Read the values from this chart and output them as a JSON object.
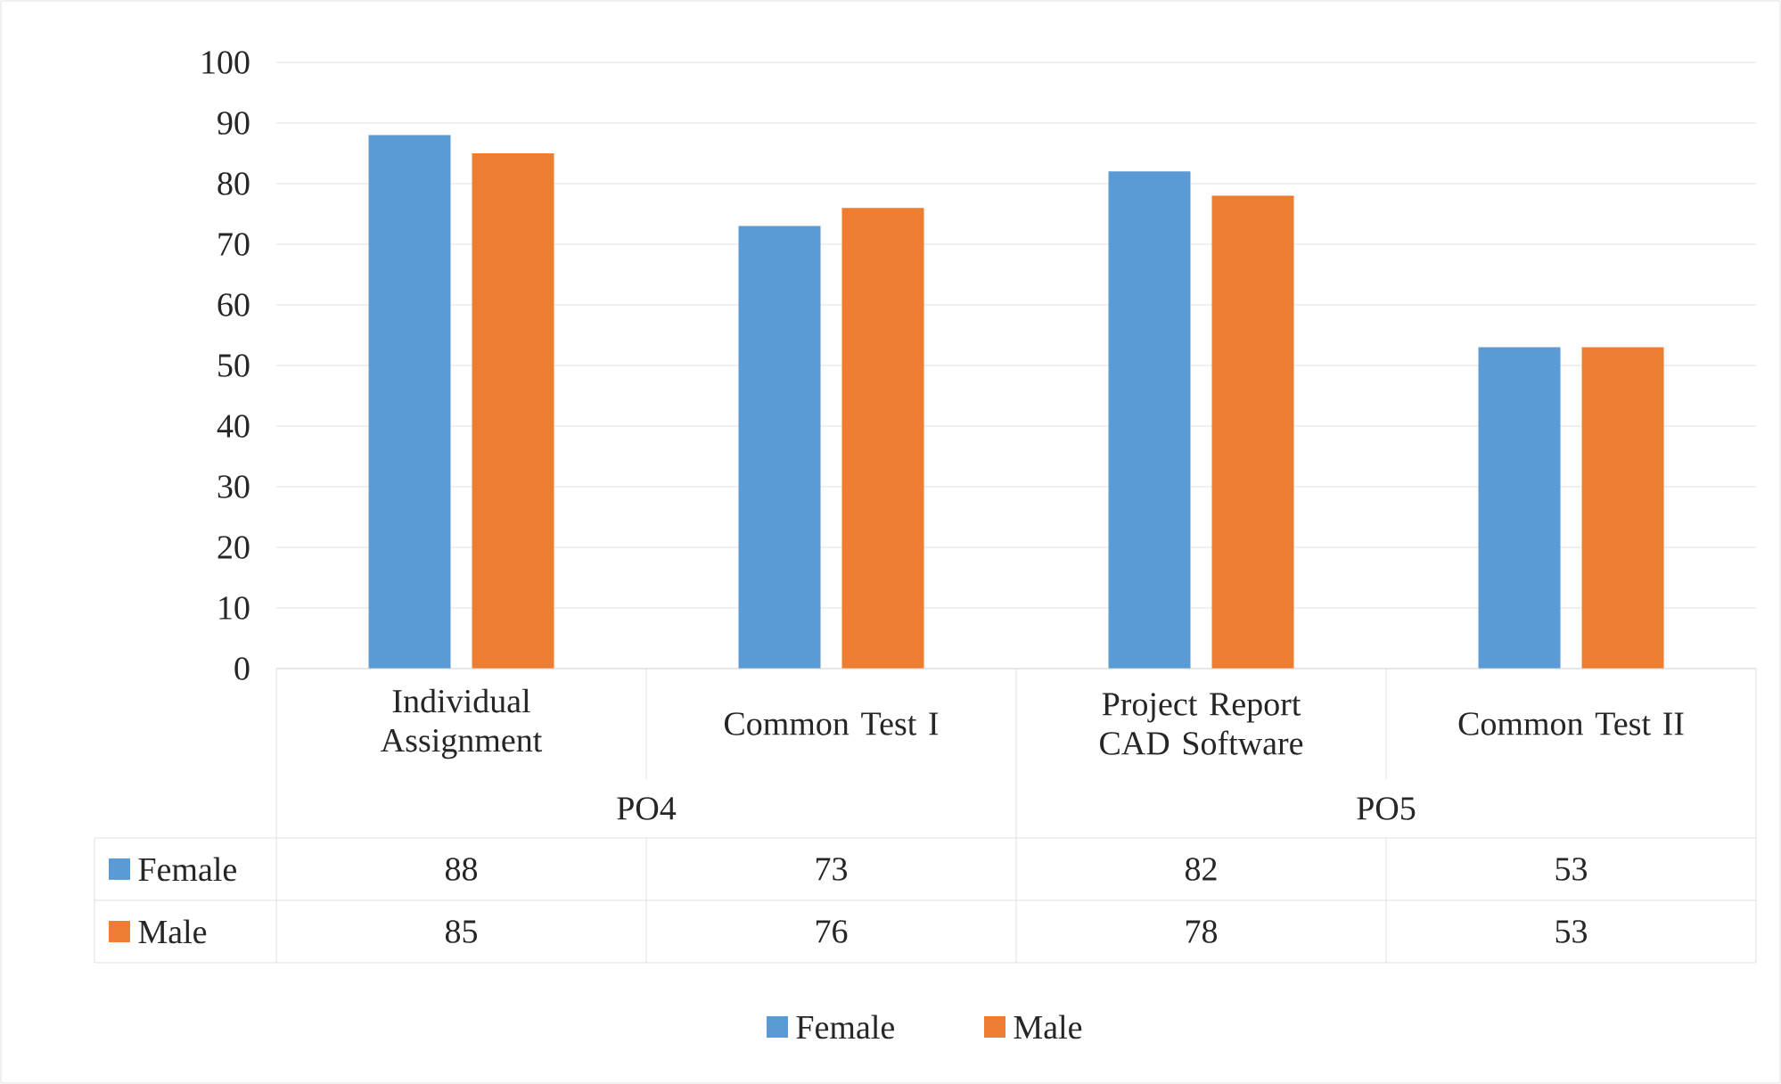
{
  "chart_data": {
    "type": "bar",
    "categories": [
      "Individual Assignment",
      "Common Test I",
      "Project Report CAD Software",
      "Common Test II"
    ],
    "series": [
      {
        "name": "Female",
        "color": "#5b9bd5",
        "values": [
          88,
          73,
          82,
          53
        ]
      },
      {
        "name": "Male",
        "color": "#ed7d31",
        "values": [
          85,
          76,
          78,
          53
        ]
      }
    ],
    "ylim": [
      0,
      100
    ],
    "yticks": [
      0,
      10,
      20,
      30,
      40,
      50,
      60,
      70,
      80,
      90,
      100
    ],
    "grid": "y",
    "legend": "bottom",
    "data_labels": true,
    "annotations": [
      "PO4",
      "PO5"
    ]
  }
}
